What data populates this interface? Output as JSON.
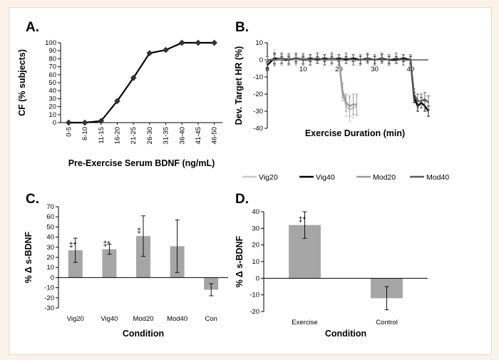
{
  "colors": {
    "panel_border": "#e6d9c8",
    "page_bg": "#fbf3ea",
    "line_black": "#000000",
    "bar_gray": "#a6a6a6",
    "vig20": "#c8c8c8",
    "vig40": "#000000",
    "mod20": "#9a9a9a",
    "mod40": "#595959"
  },
  "chart_data": [
    {
      "panel": "A.",
      "type": "line",
      "categories": [
        "0-5",
        "6-10",
        "11-15",
        "16-20",
        "21-25",
        "26-30",
        "31-35",
        "36-40",
        "41-45",
        "46-50"
      ],
      "values": [
        0,
        0,
        2,
        27,
        56,
        87,
        91,
        100,
        100,
        100
      ],
      "xlabel": "Pre-Exercise Serum BDNF (ng/mL)",
      "ylabel": "CF (% subjects)",
      "ylim": [
        0,
        100
      ],
      "yticks": [
        0,
        10,
        20,
        30,
        40,
        50,
        60,
        70,
        80,
        90,
        100
      ],
      "marker": "diamond"
    },
    {
      "panel": "B.",
      "type": "line",
      "xlabel": "Exercise Duration (min)",
      "ylabel": "Dev. Target HR (%)",
      "xlim": [
        0,
        45
      ],
      "ylim": [
        -40,
        10
      ],
      "xticks": [
        0,
        10,
        20,
        30,
        40
      ],
      "xtick_labels": [
        "0",
        "10",
        "20",
        "30",
        "40"
      ],
      "yticks": [
        -40,
        -30,
        -20,
        -10,
        0,
        10
      ],
      "legend_position": "bottom",
      "series": [
        {
          "name": "Vig20",
          "x": [
            0,
            2,
            4,
            6,
            8,
            10,
            12,
            14,
            16,
            18,
            20,
            21,
            22,
            23,
            24,
            25
          ],
          "y": [
            -1,
            1,
            1,
            0,
            1,
            1,
            0,
            1,
            0,
            1,
            0,
            -20,
            -27,
            -29,
            -28,
            -27
          ],
          "err": [
            1,
            5,
            3,
            3,
            3,
            3,
            3,
            3,
            3,
            3,
            3,
            4,
            6,
            7,
            6,
            6
          ]
        },
        {
          "name": "Vig40",
          "x": [
            0,
            2,
            4,
            6,
            8,
            10,
            12,
            14,
            16,
            18,
            20,
            22,
            24,
            26,
            28,
            30,
            32,
            34,
            36,
            38,
            40,
            41,
            42,
            43,
            44,
            45
          ],
          "y": [
            -3,
            1,
            0,
            0,
            1,
            0,
            1,
            0,
            1,
            0,
            1,
            0,
            1,
            0,
            1,
            0,
            1,
            0,
            0,
            1,
            0,
            -22,
            -27,
            -25,
            -27,
            -30
          ],
          "err": [
            2,
            3,
            2,
            2,
            2,
            2,
            2,
            2,
            2,
            2,
            2,
            2,
            2,
            2,
            2,
            2,
            2,
            2,
            2,
            2,
            2,
            3,
            3,
            3,
            3,
            3
          ]
        },
        {
          "name": "Mod20",
          "x": [
            0,
            2,
            4,
            6,
            8,
            10,
            12,
            14,
            16,
            18,
            20,
            21,
            22,
            23,
            24,
            25
          ],
          "y": [
            0,
            0,
            0,
            1,
            0,
            1,
            0,
            1,
            0,
            0,
            0,
            -18,
            -25,
            -27,
            -26,
            -26
          ],
          "err": [
            2,
            3,
            3,
            3,
            3,
            3,
            3,
            3,
            3,
            3,
            3,
            4,
            5,
            6,
            6,
            6
          ]
        },
        {
          "name": "Mod40",
          "x": [
            0,
            2,
            4,
            6,
            8,
            10,
            12,
            14,
            16,
            18,
            20,
            22,
            24,
            26,
            28,
            30,
            32,
            34,
            36,
            38,
            40,
            41,
            42,
            43,
            44,
            45
          ],
          "y": [
            0,
            0,
            1,
            0,
            1,
            0,
            0,
            1,
            0,
            1,
            0,
            1,
            0,
            0,
            1,
            0,
            1,
            0,
            1,
            0,
            0,
            -20,
            -24,
            -24,
            -23,
            -25
          ],
          "err": [
            2,
            3,
            3,
            3,
            3,
            3,
            3,
            3,
            3,
            3,
            3,
            3,
            3,
            3,
            3,
            3,
            3,
            3,
            3,
            3,
            3,
            3,
            4,
            4,
            4,
            4
          ]
        }
      ]
    },
    {
      "panel": "C.",
      "type": "bar",
      "categories": [
        "Vig20",
        "Vig40",
        "Mod20",
        "Mod40",
        "Con"
      ],
      "values": [
        27,
        28,
        41,
        31,
        -12
      ],
      "err": [
        12,
        5,
        20,
        26,
        6
      ],
      "markers": [
        "‡*",
        "‡*",
        "‡",
        "",
        ""
      ],
      "xlabel": "Condition",
      "ylabel": "% Δ s-BDNF",
      "ylim": [
        -30,
        70
      ],
      "yticks": [
        -30,
        -20,
        -10,
        0,
        10,
        20,
        30,
        40,
        50,
        60,
        70
      ]
    },
    {
      "panel": "D.",
      "type": "bar",
      "categories": [
        "Exercise",
        "Control"
      ],
      "values": [
        32,
        -12
      ],
      "err": [
        8,
        7
      ],
      "markers": [
        "‡*",
        ""
      ],
      "xlabel": "Condition",
      "ylabel": "% Δ s-BDNF",
      "ylim": [
        -20,
        40
      ],
      "yticks": [
        -20,
        -10,
        0,
        10,
        20,
        30,
        40
      ]
    }
  ]
}
